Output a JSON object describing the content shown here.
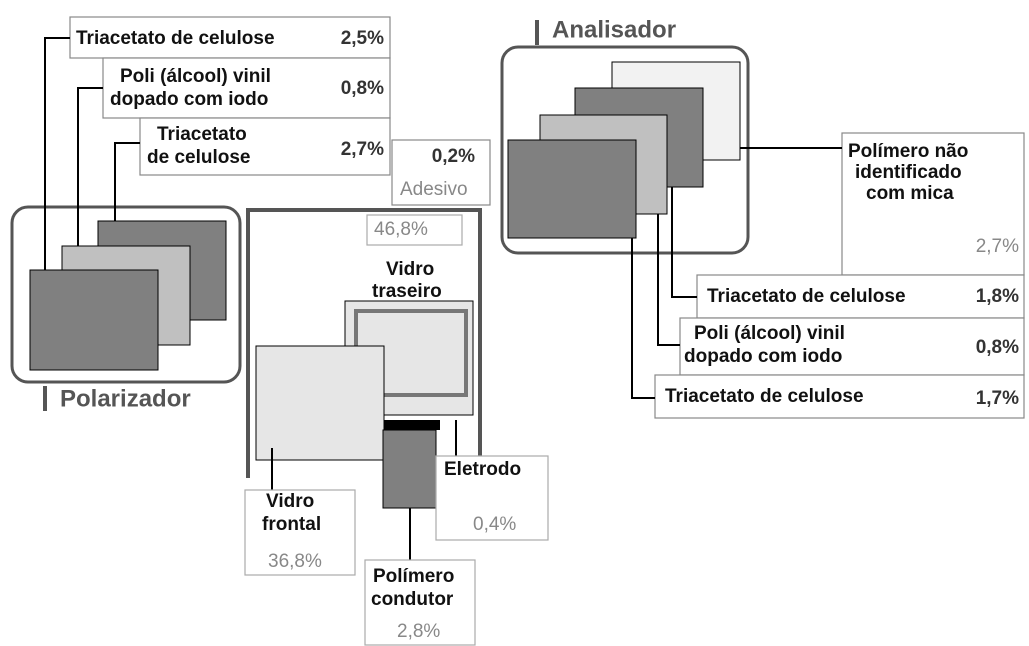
{
  "polarizer": {
    "title": "Polarizador",
    "layers": [
      {
        "lines": [
          "Triacetato de celulose"
        ],
        "share": "2,5%"
      },
      {
        "lines": [
          "Poli (álcool) vinil",
          "dopado com iodo"
        ],
        "share": "0,8%"
      },
      {
        "lines": [
          "Triacetato",
          "de celulose"
        ],
        "share": "2,7%"
      }
    ]
  },
  "adhesive": {
    "share": "0,2%",
    "name": "Adesivo"
  },
  "cell": {
    "rear_glass": {
      "share": "46,8%",
      "lines": [
        "Vidro",
        "traseiro"
      ]
    },
    "front_glass": {
      "lines": [
        "Vidro",
        "frontal"
      ],
      "share": "36,8%"
    },
    "electrode": {
      "name": "Eletrodo",
      "share": "0,4%"
    },
    "conductive_polymer": {
      "lines": [
        "Polímero",
        "condutor"
      ],
      "share": "2,8%"
    }
  },
  "analyzer": {
    "title": "Analisador",
    "layers": [
      {
        "lines": [
          "Polímero não",
          "identificado",
          "com mica"
        ],
        "share": "2,7%"
      },
      {
        "lines": [
          "Triacetato de celulose"
        ],
        "share": "1,8%"
      },
      {
        "lines": [
          "Poli (álcool) vinil",
          "dopado com iodo"
        ],
        "share": "0,8%"
      },
      {
        "lines": [
          "Triacetato de celulose"
        ],
        "share": "1,7%"
      }
    ]
  }
}
